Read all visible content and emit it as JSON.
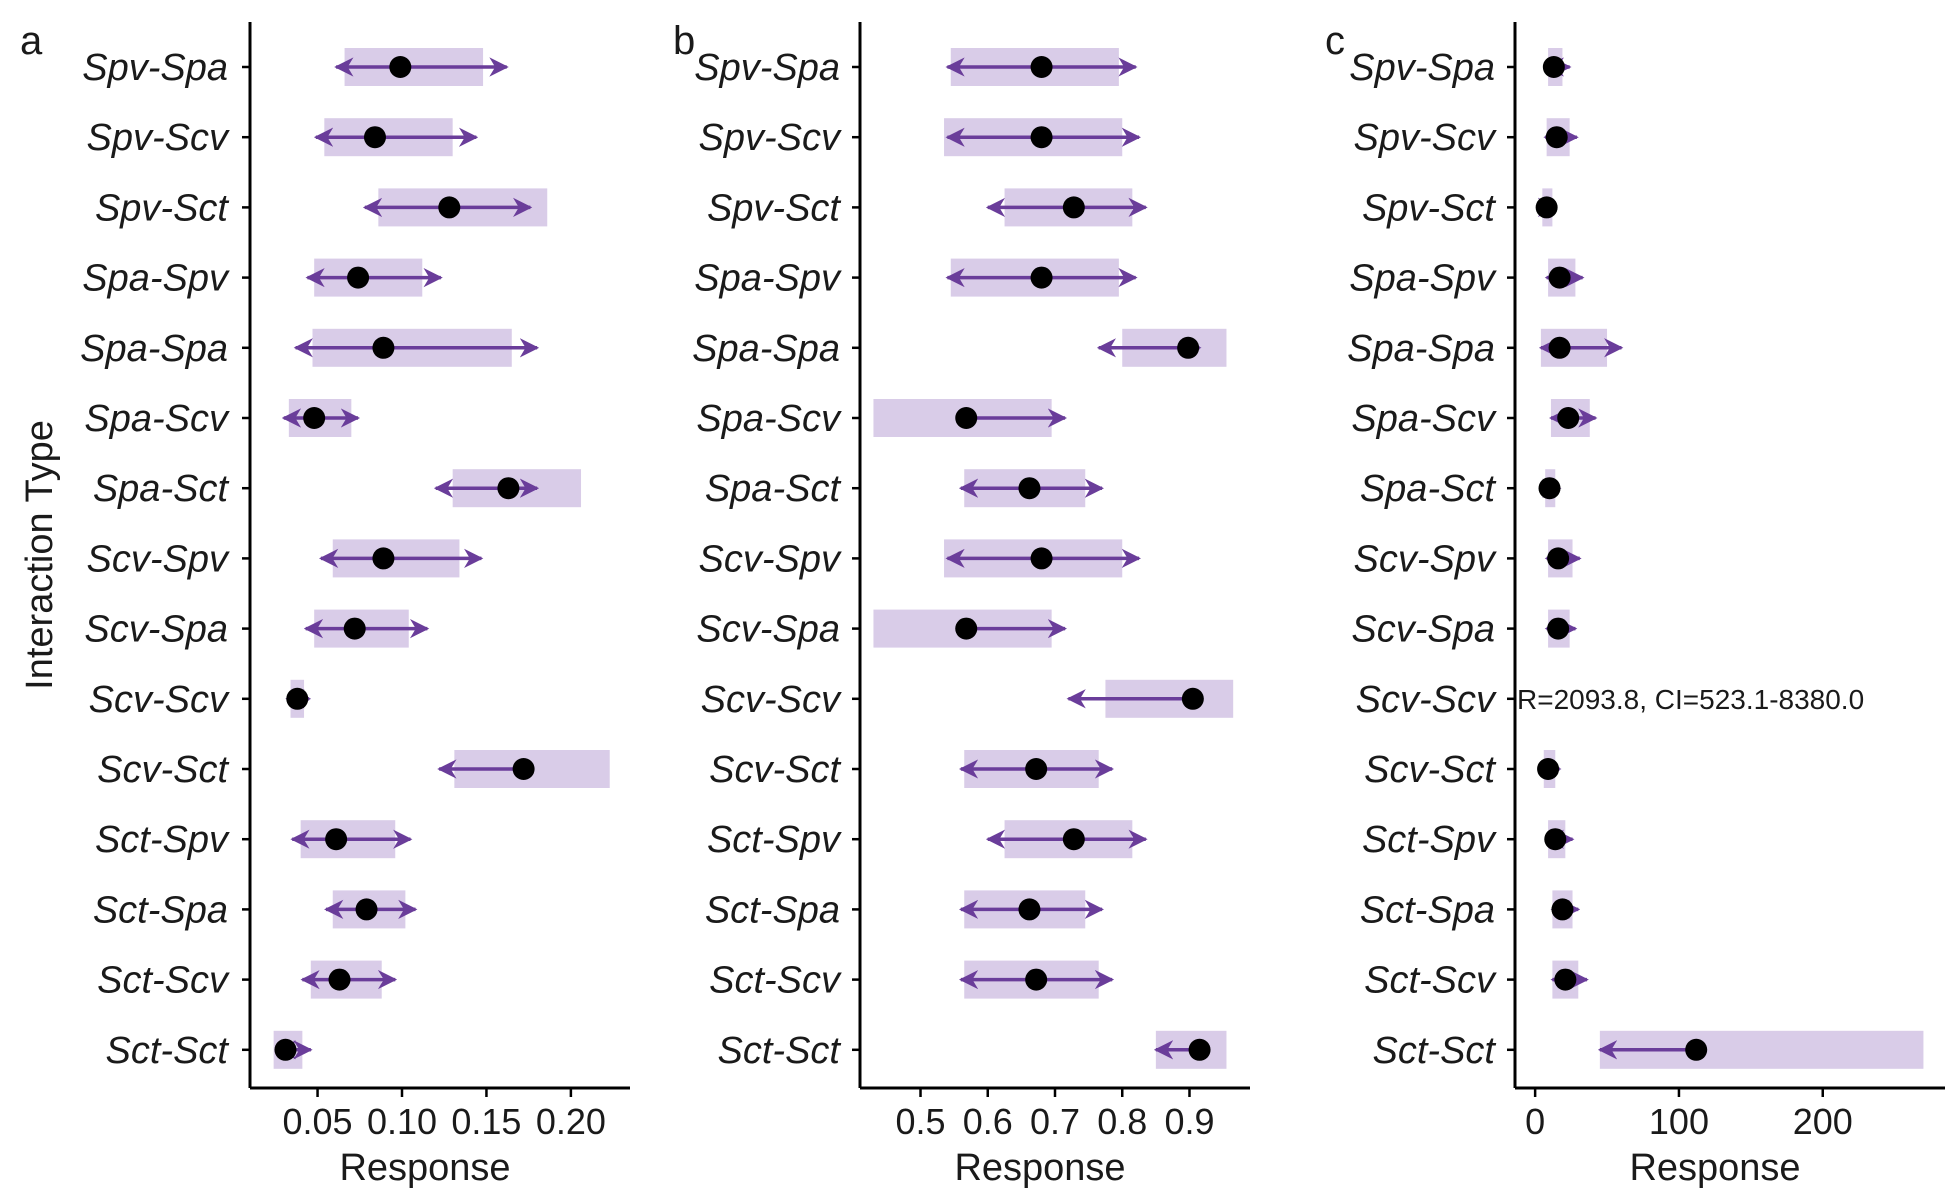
{
  "figure": {
    "ylabel": "Interaction Type",
    "categories": [
      "Spv-Spa",
      "Spv-Scv",
      "Spv-Sct",
      "Spa-Spv",
      "Spa-Spa",
      "Spa-Scv",
      "Spa-Sct",
      "Scv-Spv",
      "Scv-Spa",
      "Scv-Scv",
      "Scv-Sct",
      "Sct-Spv",
      "Sct-Spa",
      "Sct-Scv",
      "Sct-Sct"
    ],
    "colors": {
      "band": "#d9cce8",
      "arrow": "#6a3d9a",
      "point": "#000000",
      "axis": "#000000"
    }
  },
  "chart_data": [
    {
      "type": "scatter",
      "panel": "a",
      "xlabel": "Response",
      "xlim": [
        0.01,
        0.235
      ],
      "xticks": [
        0.05,
        0.1,
        0.15,
        0.2
      ],
      "xtick_labels": [
        "0.05",
        "0.10",
        "0.15",
        "0.20"
      ],
      "points": [
        {
          "category": "Spv-Spa",
          "value": 0.099,
          "ci_low": 0.066,
          "ci_high": 0.148,
          "arrow_low": 0.061,
          "arrow_high": 0.162
        },
        {
          "category": "Spv-Scv",
          "value": 0.084,
          "ci_low": 0.054,
          "ci_high": 0.13,
          "arrow_low": 0.049,
          "arrow_high": 0.144
        },
        {
          "category": "Spv-Sct",
          "value": 0.128,
          "ci_low": 0.086,
          "ci_high": 0.186,
          "arrow_low": 0.078,
          "arrow_high": 0.176
        },
        {
          "category": "Spa-Spv",
          "value": 0.074,
          "ci_low": 0.048,
          "ci_high": 0.112,
          "arrow_low": 0.044,
          "arrow_high": 0.123
        },
        {
          "category": "Spa-Spa",
          "value": 0.089,
          "ci_low": 0.047,
          "ci_high": 0.165,
          "arrow_low": 0.037,
          "arrow_high": 0.18
        },
        {
          "category": "Spa-Scv",
          "value": 0.048,
          "ci_low": 0.033,
          "ci_high": 0.07,
          "arrow_low": 0.03,
          "arrow_high": 0.074
        },
        {
          "category": "Spa-Sct",
          "value": 0.163,
          "ci_low": 0.13,
          "ci_high": 0.206,
          "arrow_low": 0.12,
          "arrow_high": 0.18
        },
        {
          "category": "Scv-Spv",
          "value": 0.089,
          "ci_low": 0.059,
          "ci_high": 0.134,
          "arrow_low": 0.052,
          "arrow_high": 0.147
        },
        {
          "category": "Scv-Spa",
          "value": 0.072,
          "ci_low": 0.048,
          "ci_high": 0.104,
          "arrow_low": 0.043,
          "arrow_high": 0.115
        },
        {
          "category": "Scv-Scv",
          "value": 0.038,
          "ci_low": 0.034,
          "ci_high": 0.042,
          "arrow_low": 0.032,
          "arrow_high": 0.045
        },
        {
          "category": "Scv-Sct",
          "value": 0.172,
          "ci_low": 0.131,
          "ci_high": 0.223,
          "arrow_low": 0.122,
          "arrow_high": 0.172
        },
        {
          "category": "Sct-Spv",
          "value": 0.061,
          "ci_low": 0.04,
          "ci_high": 0.096,
          "arrow_low": 0.035,
          "arrow_high": 0.105
        },
        {
          "category": "Sct-Spa",
          "value": 0.079,
          "ci_low": 0.059,
          "ci_high": 0.102,
          "arrow_low": 0.055,
          "arrow_high": 0.108
        },
        {
          "category": "Sct-Scv",
          "value": 0.063,
          "ci_low": 0.046,
          "ci_high": 0.088,
          "arrow_low": 0.041,
          "arrow_high": 0.096
        },
        {
          "category": "Sct-Sct",
          "value": 0.031,
          "ci_low": 0.024,
          "ci_high": 0.041,
          "arrow_low": 0.027,
          "arrow_high": 0.046
        }
      ]
    },
    {
      "type": "scatter",
      "panel": "b",
      "xlabel": "Response",
      "xlim": [
        0.41,
        0.99
      ],
      "xticks": [
        0.5,
        0.6,
        0.7,
        0.8,
        0.9
      ],
      "xtick_labels": [
        "0.5",
        "0.6",
        "0.7",
        "0.8",
        "0.9"
      ],
      "points": [
        {
          "category": "Spv-Spa",
          "value": 0.68,
          "ci_low": 0.545,
          "ci_high": 0.795,
          "arrow_low": 0.54,
          "arrow_high": 0.82
        },
        {
          "category": "Spv-Scv",
          "value": 0.68,
          "ci_low": 0.535,
          "ci_high": 0.8,
          "arrow_low": 0.54,
          "arrow_high": 0.825
        },
        {
          "category": "Spv-Sct",
          "value": 0.728,
          "ci_low": 0.625,
          "ci_high": 0.815,
          "arrow_low": 0.6,
          "arrow_high": 0.835
        },
        {
          "category": "Spa-Spv",
          "value": 0.68,
          "ci_low": 0.545,
          "ci_high": 0.795,
          "arrow_low": 0.54,
          "arrow_high": 0.82
        },
        {
          "category": "Spa-Spa",
          "value": 0.898,
          "ci_low": 0.8,
          "ci_high": 0.955,
          "arrow_low": 0.765,
          "arrow_high": 0.915
        },
        {
          "category": "Spa-Scv",
          "value": 0.568,
          "ci_low": 0.43,
          "ci_high": 0.695,
          "arrow_low": 0.57,
          "arrow_high": 0.715
        },
        {
          "category": "Spa-Sct",
          "value": 0.662,
          "ci_low": 0.565,
          "ci_high": 0.745,
          "arrow_low": 0.56,
          "arrow_high": 0.77
        },
        {
          "category": "Scv-Spv",
          "value": 0.68,
          "ci_low": 0.535,
          "ci_high": 0.8,
          "arrow_low": 0.54,
          "arrow_high": 0.825
        },
        {
          "category": "Scv-Spa",
          "value": 0.568,
          "ci_low": 0.43,
          "ci_high": 0.695,
          "arrow_low": 0.57,
          "arrow_high": 0.715
        },
        {
          "category": "Scv-Scv",
          "value": 0.905,
          "ci_low": 0.775,
          "ci_high": 0.965,
          "arrow_low": 0.72,
          "arrow_high": 0.905
        },
        {
          "category": "Scv-Sct",
          "value": 0.672,
          "ci_low": 0.565,
          "ci_high": 0.765,
          "arrow_low": 0.56,
          "arrow_high": 0.785
        },
        {
          "category": "Sct-Spv",
          "value": 0.728,
          "ci_low": 0.625,
          "ci_high": 0.815,
          "arrow_low": 0.6,
          "arrow_high": 0.835
        },
        {
          "category": "Sct-Spa",
          "value": 0.662,
          "ci_low": 0.565,
          "ci_high": 0.745,
          "arrow_low": 0.56,
          "arrow_high": 0.77
        },
        {
          "category": "Sct-Scv",
          "value": 0.672,
          "ci_low": 0.565,
          "ci_high": 0.765,
          "arrow_low": 0.56,
          "arrow_high": 0.785
        },
        {
          "category": "Sct-Sct",
          "value": 0.915,
          "ci_low": 0.85,
          "ci_high": 0.955,
          "arrow_low": 0.85,
          "arrow_high": 0.915
        }
      ]
    },
    {
      "type": "scatter",
      "panel": "c",
      "xlabel": "Response",
      "xlim": [
        -14,
        285
      ],
      "xticks": [
        0,
        100,
        200
      ],
      "xtick_labels": [
        "0",
        "100",
        "200"
      ],
      "annotation": {
        "category": "Scv-Scv",
        "text": "R=2093.8, CI=523.1-8380.0"
      },
      "points": [
        {
          "category": "Spv-Spa",
          "value": 13,
          "ci_low": 9,
          "ci_high": 19,
          "arrow_low": 8,
          "arrow_high": 24
        },
        {
          "category": "Spv-Scv",
          "value": 15,
          "ci_low": 8,
          "ci_high": 24,
          "arrow_low": 7,
          "arrow_high": 29
        },
        {
          "category": "Spv-Sct",
          "value": 8,
          "ci_low": 5,
          "ci_high": 12,
          "arrow_low": 5,
          "arrow_high": 14
        },
        {
          "category": "Spa-Spv",
          "value": 17,
          "ci_low": 9,
          "ci_high": 28,
          "arrow_low": 8,
          "arrow_high": 33
        },
        {
          "category": "Spa-Spa",
          "value": 17,
          "ci_low": 4,
          "ci_high": 50,
          "arrow_low": 4,
          "arrow_high": 60
        },
        {
          "category": "Spa-Scv",
          "value": 23,
          "ci_low": 11,
          "ci_high": 38,
          "arrow_low": 11,
          "arrow_high": 42
        },
        {
          "category": "Spa-Sct",
          "value": 10,
          "ci_low": 7,
          "ci_high": 14,
          "arrow_low": 7,
          "arrow_high": 17
        },
        {
          "category": "Scv-Spv",
          "value": 16,
          "ci_low": 9,
          "ci_high": 26,
          "arrow_low": 8,
          "arrow_high": 31
        },
        {
          "category": "Scv-Spa",
          "value": 16,
          "ci_low": 9,
          "ci_high": 24,
          "arrow_low": 8,
          "arrow_high": 28
        },
        {
          "category": "Scv-Sct",
          "value": 9,
          "ci_low": 6,
          "ci_high": 14,
          "arrow_low": 6,
          "arrow_high": 17
        },
        {
          "category": "Sct-Spv",
          "value": 14,
          "ci_low": 9,
          "ci_high": 21,
          "arrow_low": 8,
          "arrow_high": 26
        },
        {
          "category": "Sct-Spa",
          "value": 19,
          "ci_low": 12,
          "ci_high": 26,
          "arrow_low": 12,
          "arrow_high": 30
        },
        {
          "category": "Sct-Scv",
          "value": 21,
          "ci_low": 12,
          "ci_high": 30,
          "arrow_low": 12,
          "arrow_high": 36
        },
        {
          "category": "Sct-Sct",
          "value": 112,
          "ci_low": 45,
          "ci_high": 270,
          "arrow_low": 45,
          "arrow_high": 112
        }
      ]
    }
  ]
}
